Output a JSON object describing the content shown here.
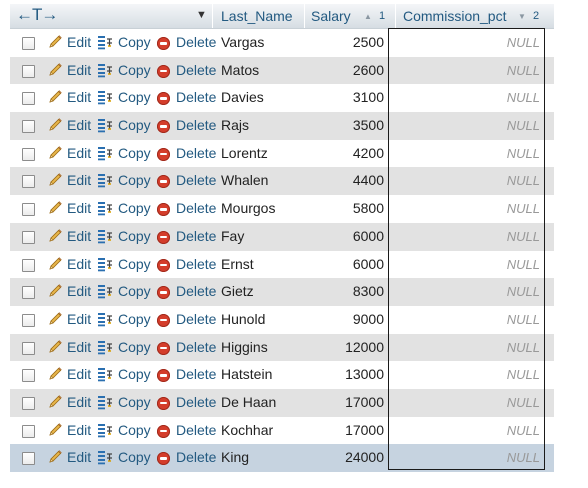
{
  "header": {
    "nav_arrows": "←T→",
    "col_last_name": "Last_Name",
    "col_salary": "Salary",
    "col_salary_sort_num": "1",
    "col_commission": "Commission_pct",
    "col_commission_sort_num": "2"
  },
  "actions": {
    "edit": "Edit",
    "copy": "Copy",
    "delete": "Delete"
  },
  "rows": [
    {
      "last_name": "Vargas",
      "salary": "2500",
      "commission": "NULL"
    },
    {
      "last_name": "Matos",
      "salary": "2600",
      "commission": "NULL"
    },
    {
      "last_name": "Davies",
      "salary": "3100",
      "commission": "NULL"
    },
    {
      "last_name": "Rajs",
      "salary": "3500",
      "commission": "NULL"
    },
    {
      "last_name": "Lorentz",
      "salary": "4200",
      "commission": "NULL"
    },
    {
      "last_name": "Whalen",
      "salary": "4400",
      "commission": "NULL"
    },
    {
      "last_name": "Mourgos",
      "salary": "5800",
      "commission": "NULL"
    },
    {
      "last_name": "Fay",
      "salary": "6000",
      "commission": "NULL"
    },
    {
      "last_name": "Ernst",
      "salary": "6000",
      "commission": "NULL"
    },
    {
      "last_name": "Gietz",
      "salary": "8300",
      "commission": "NULL"
    },
    {
      "last_name": "Hunold",
      "salary": "9000",
      "commission": "NULL"
    },
    {
      "last_name": "Higgins",
      "salary": "12000",
      "commission": "NULL"
    },
    {
      "last_name": "Hatstein",
      "salary": "13000",
      "commission": "NULL"
    },
    {
      "last_name": "De Haan",
      "salary": "17000",
      "commission": "NULL"
    },
    {
      "last_name": "Kochhar",
      "salary": "17000",
      "commission": "NULL"
    },
    {
      "last_name": "King",
      "salary": "24000",
      "commission": "NULL"
    }
  ],
  "colors": {
    "link": "#235a81",
    "row_alt": "#e2e2e2",
    "row_selected": "#c6d3e0",
    "delete_icon": "#d43d2b"
  }
}
